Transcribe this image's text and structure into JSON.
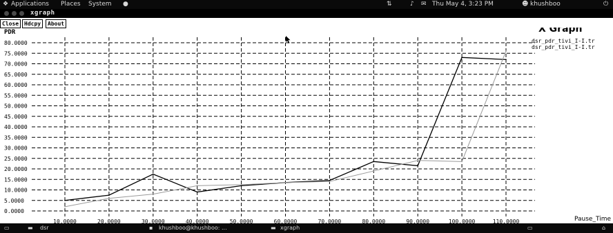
{
  "top_panel": {
    "menus": [
      "Applications",
      "Places",
      "System"
    ],
    "datetime": "Thu May 4, 3:23 PM",
    "user": "khushboo"
  },
  "window": {
    "title": "xgraph",
    "buttons": [
      "Close",
      "Hdcpy",
      "About"
    ],
    "heading": "X Graph"
  },
  "chart_data": {
    "type": "line",
    "title": "X Graph",
    "ylabel": "PDR",
    "xlabel": "Pause_Time",
    "ylim": [
      0,
      80
    ],
    "ytick_labels": [
      "0.0000",
      "5.0000",
      "10.0000",
      "15.0000",
      "20.0000",
      "25.0000",
      "30.0000",
      "35.0000",
      "40.0000",
      "45.0000",
      "50.0000",
      "55.0000",
      "60.0000",
      "65.0000",
      "70.0000",
      "75.0000",
      "80.0000"
    ],
    "x": [
      10,
      20,
      30,
      40,
      50,
      60,
      70,
      80,
      90,
      100,
      110
    ],
    "xtick_labels": [
      "10.0000",
      "20.0000",
      "30.0000",
      "40.0000",
      "50.0000",
      "60.0000",
      "70.0000",
      "80.0000",
      "90.0000",
      "100.0000",
      "110.0000"
    ],
    "series": [
      {
        "name": "dsr_pdr_tivi_I-I.tr",
        "color": "#000000",
        "values": [
          5,
          7.5,
          17.5,
          9,
          12,
          13.5,
          14.5,
          23.5,
          21.5,
          73,
          72
        ]
      },
      {
        "name": "dsr_pdr_tivi_I-I.tr",
        "color": "#9a9a9a",
        "values": [
          2,
          6,
          8,
          12,
          12.5,
          13.5,
          14,
          19,
          24,
          23.5,
          76
        ]
      }
    ],
    "grid": true,
    "legend": "top-right"
  },
  "bottom_panel": {
    "tasks": [
      "dsr",
      "khushboo@khushboo: ...",
      "xgraph"
    ]
  },
  "colors": {
    "panel_bg": "#0a0a0a",
    "plot_bg": "#ffffff",
    "grid": "#000000"
  }
}
